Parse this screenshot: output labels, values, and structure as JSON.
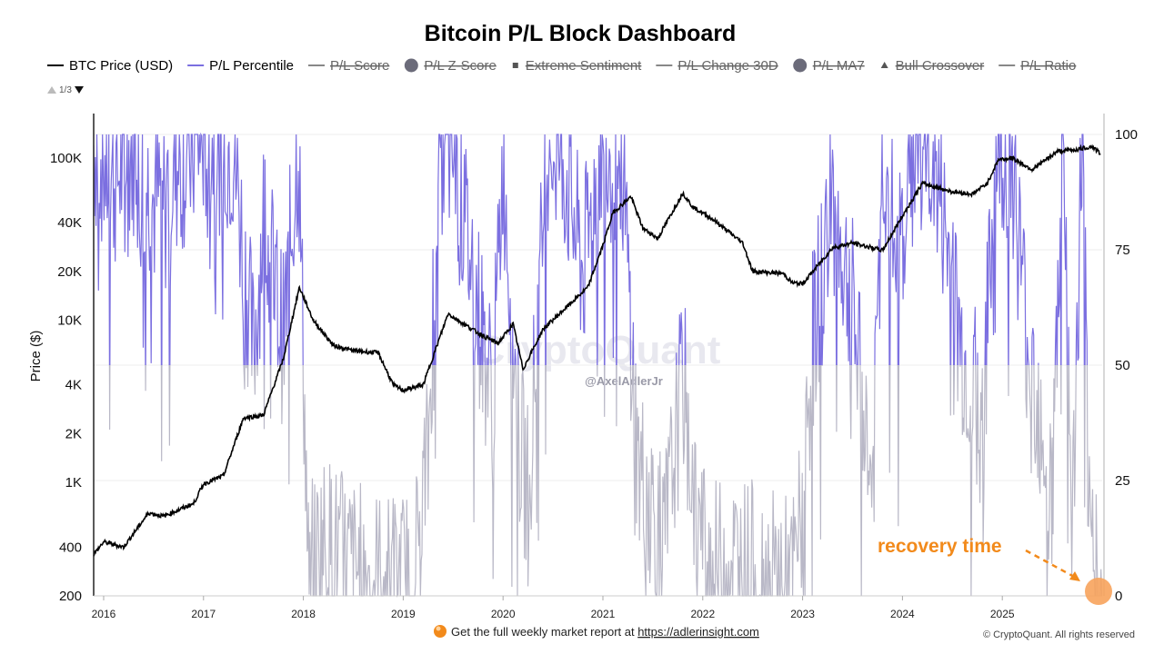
{
  "chart_data": {
    "type": "line",
    "title": "Bitcoin P/L Block Dashboard",
    "ylabel_left": "Price ($)",
    "y_left_scale": "log",
    "y_left_range": [
      200,
      140000
    ],
    "y_left_ticks": [
      {
        "value": 200,
        "label": "200"
      },
      {
        "value": 400,
        "label": "400"
      },
      {
        "value": 1000,
        "label": "1K"
      },
      {
        "value": 2000,
        "label": "2K"
      },
      {
        "value": 4000,
        "label": "4K"
      },
      {
        "value": 10000,
        "label": "10K"
      },
      {
        "value": 20000,
        "label": "20K"
      },
      {
        "value": 40000,
        "label": "40K"
      },
      {
        "value": 100000,
        "label": "100K"
      }
    ],
    "y_right_range": [
      0,
      100
    ],
    "y_right_ticks": [
      {
        "value": 0,
        "label": "0"
      },
      {
        "value": 25,
        "label": "25"
      },
      {
        "value": 50,
        "label": "50"
      },
      {
        "value": 75,
        "label": "75"
      },
      {
        "value": 100,
        "label": "100"
      }
    ],
    "x_range": [
      2015.9,
      2026.0
    ],
    "x_ticks": [
      {
        "value": 2016,
        "label": "2016"
      },
      {
        "value": 2017,
        "label": "2017"
      },
      {
        "value": 2018,
        "label": "2018"
      },
      {
        "value": 2019,
        "label": "2019"
      },
      {
        "value": 2020,
        "label": "2020"
      },
      {
        "value": 2021,
        "label": "2021"
      },
      {
        "value": 2022,
        "label": "2022"
      },
      {
        "value": 2023,
        "label": "2023"
      },
      {
        "value": 2024,
        "label": "2024"
      },
      {
        "value": 2025,
        "label": "2025"
      }
    ],
    "legend": [
      {
        "name": "BTC Price (USD)",
        "marker": "line",
        "color": "#000000",
        "active": true
      },
      {
        "name": "P/L Percentile",
        "marker": "line",
        "color": "#7b6fe0",
        "active": true
      },
      {
        "name": "P/L Score",
        "marker": "line",
        "color": "#777777",
        "active": false
      },
      {
        "name": "P/L Z-Score",
        "marker": "circle",
        "color": "#666666",
        "active": false
      },
      {
        "name": "Extreme Sentiment",
        "marker": "square",
        "color": "#666666",
        "active": false
      },
      {
        "name": "P/L Change 30D",
        "marker": "line",
        "color": "#777777",
        "active": false
      },
      {
        "name": "P/L MA7",
        "marker": "circle",
        "color": "#666666",
        "active": false
      },
      {
        "name": "Bull Crossover",
        "marker": "triangle",
        "color": "#666666",
        "active": false
      },
      {
        "name": "P/L Ratio",
        "marker": "line",
        "color": "#777777",
        "active": false
      }
    ],
    "legend_pager": "1/3",
    "series": [
      {
        "name": "BTC Price (USD)",
        "axis": "left",
        "color": "#000000",
        "x": [
          2015.9,
          2016.0,
          2016.2,
          2016.45,
          2016.6,
          2016.9,
          2017.0,
          2017.2,
          2017.4,
          2017.6,
          2017.8,
          2017.96,
          2018.1,
          2018.3,
          2018.5,
          2018.75,
          2018.9,
          2019.0,
          2019.2,
          2019.45,
          2019.55,
          2019.8,
          2019.95,
          2020.1,
          2020.2,
          2020.4,
          2020.6,
          2020.85,
          2021.0,
          2021.1,
          2021.28,
          2021.4,
          2021.55,
          2021.8,
          2021.9,
          2022.1,
          2022.4,
          2022.5,
          2022.8,
          2022.9,
          2023.0,
          2023.3,
          2023.5,
          2023.8,
          2024.0,
          2024.2,
          2024.5,
          2024.7,
          2024.85,
          2024.96,
          2025.1,
          2025.3,
          2025.55,
          2025.75,
          2025.9,
          2025.98
        ],
        "y": [
          360,
          430,
          400,
          650,
          620,
          740,
          980,
          1100,
          2500,
          2600,
          5800,
          16000,
          10000,
          7000,
          6500,
          6300,
          4000,
          3700,
          4000,
          11000,
          10000,
          8000,
          7200,
          9500,
          5000,
          8800,
          11500,
          16000,
          29000,
          46000,
          58000,
          37000,
          32000,
          61000,
          50000,
          42000,
          30000,
          20000,
          19500,
          17000,
          16800,
          28000,
          30000,
          27000,
          44000,
          70000,
          62000,
          60000,
          70000,
          98000,
          100000,
          85000,
          110000,
          113000,
          118000,
          107000
        ]
      },
      {
        "name": "P/L Percentile",
        "axis": "right",
        "color": "#7b6fe0",
        "color_below_50": "#b9b8c7",
        "x": [
          2015.9,
          2016.1,
          2016.3,
          2016.5,
          2016.75,
          2017.0,
          2017.3,
          2017.5,
          2017.6,
          2017.8,
          2017.95,
          2018.05,
          2018.2,
          2018.5,
          2018.9,
          2019.1,
          2019.25,
          2019.35,
          2019.5,
          2019.7,
          2019.8,
          2019.9,
          2020.0,
          2020.15,
          2020.25,
          2020.45,
          2020.6,
          2020.8,
          2021.0,
          2021.2,
          2021.35,
          2021.5,
          2021.6,
          2021.8,
          2021.95,
          2022.1,
          2022.3,
          2022.6,
          2022.9,
          2023.0,
          2023.1,
          2023.3,
          2023.5,
          2023.7,
          2023.8,
          2023.95,
          2024.1,
          2024.3,
          2024.45,
          2024.6,
          2024.8,
          2024.95,
          2025.1,
          2025.25,
          2025.4,
          2025.5,
          2025.6,
          2025.7,
          2025.8,
          2025.88,
          2025.94,
          2026.0
        ],
        "y": [
          98,
          90,
          97,
          85,
          93,
          99,
          97,
          52,
          82,
          55,
          99,
          4,
          12,
          6,
          3,
          4,
          30,
          98,
          96,
          70,
          55,
          42,
          96,
          36,
          22,
          99,
          95,
          70,
          99,
          92,
          28,
          20,
          8,
          48,
          15,
          5,
          8,
          4,
          2,
          20,
          55,
          85,
          62,
          22,
          98,
          70,
          99,
          95,
          75,
          52,
          38,
          98,
          94,
          55,
          38,
          20,
          98,
          12,
          100,
          2,
          8,
          0
        ]
      }
    ],
    "annotation": {
      "text": "recovery time",
      "color": "#f28a1b",
      "x": 2025.9,
      "y_right": 2
    }
  },
  "watermark": {
    "brand": "CryptoQuant",
    "handle": "@AxelAdlerJr"
  },
  "footer": {
    "text": "Get the full weekly market report at ",
    "link": "https://adlerinsight.com",
    "copyright": "© CryptoQuant. All rights reserved"
  }
}
